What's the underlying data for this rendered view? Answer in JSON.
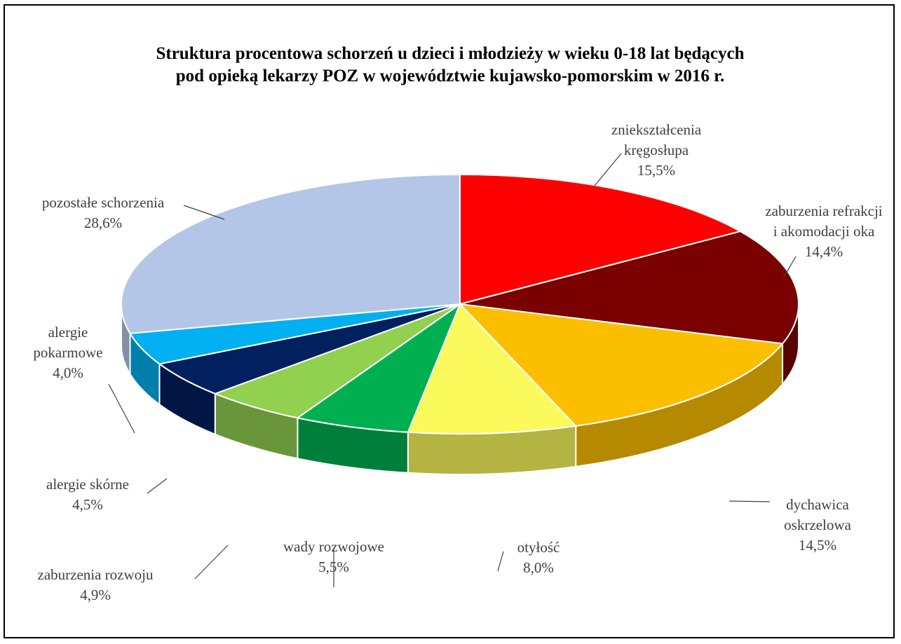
{
  "chart_data": {
    "type": "pie",
    "title": "Struktura procentowa schorzeń u dzieci i młodzieży w wieku 0-18 lat będących pod opieką lekarzy POZ w województwie kujawsko-pomorskim w 2016 r.",
    "title_lines": [
      "Struktura procentowa schorzeń u dzieci i młodzieży w wieku 0-18 lat będących",
      "pod opieką lekarzy POZ w województwie kujawsko-pomorskim w 2016 r."
    ],
    "three_d": true,
    "slices": [
      {
        "name": "zniekształcenia kręgosłupa",
        "label_lines": [
          "zniekształcenia",
          "kręgosłupa"
        ],
        "value": 15.5,
        "value_label": "15,5%",
        "color": "#FF0000"
      },
      {
        "name": "zaburzenia refrakcji i akomodacji oka",
        "label_lines": [
          "zaburzenia refrakcji",
          "i akomodacji oka"
        ],
        "value": 14.4,
        "value_label": "14,4%",
        "color": "#7B0000"
      },
      {
        "name": "dychawica oskrzelowa",
        "label_lines": [
          "dychawica",
          "oskrzelowa"
        ],
        "value": 14.5,
        "value_label": "14,5%",
        "color": "#FBBF00"
      },
      {
        "name": "otyłość",
        "label_lines": [
          "otyłość"
        ],
        "value": 8.0,
        "value_label": "8,0%",
        "color": "#FAFA5C"
      },
      {
        "name": "wady rozwojowe",
        "label_lines": [
          "wady rozwojowe"
        ],
        "value": 5.5,
        "value_label": "5,5%",
        "color": "#00B050"
      },
      {
        "name": "zaburzenia rozwoju",
        "label_lines": [
          "zaburzenia rozwoju"
        ],
        "value": 4.9,
        "value_label": "4,9%",
        "color": "#92D050"
      },
      {
        "name": "alergie skórne",
        "label_lines": [
          "alergie skórne"
        ],
        "value": 4.5,
        "value_label": "4,5%",
        "color": "#002060"
      },
      {
        "name": "alergie pokarmowe",
        "label_lines": [
          "alergie",
          "pokarmowe"
        ],
        "value": 4.0,
        "value_label": "4,0%",
        "color": "#00B0F0"
      },
      {
        "name": "pozostałe schorzenia",
        "label_lines": [
          "pozostałe schorzenia"
        ],
        "value": 28.6,
        "value_label": "28,6%",
        "color": "#B4C6E7"
      }
    ]
  }
}
